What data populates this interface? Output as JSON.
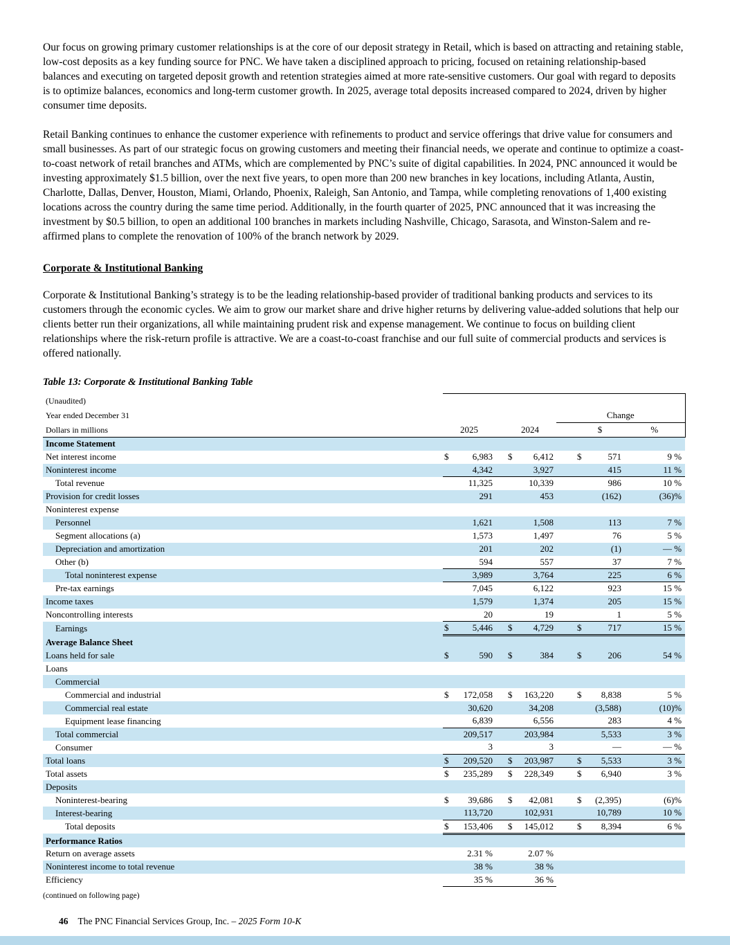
{
  "colors": {
    "row_shade": "#c8e4f2",
    "bottom_bar": "#b7d9eb"
  },
  "document": {
    "paragraphs": [
      "Our focus on growing primary customer relationships is at the core of our deposit strategy in Retail, which is based on attracting and retaining stable, low-cost deposits as a key funding source for PNC. We have taken a disciplined approach to pricing, focused on retaining relationship-based balances and executing on targeted deposit growth and retention strategies aimed at more rate-sensitive customers. Our goal with regard to deposits is to optimize balances, economics and long-term customer growth. In 2025, average total deposits increased compared to 2024, driven by higher consumer time deposits.",
      "Retail Banking continues to enhance the customer experience with refinements to product and service offerings that drive value for consumers and small businesses. As part of our strategic focus on growing customers and meeting their financial needs, we operate and continue to optimize a coast-to-coast network of retail branches and ATMs, which are complemented by PNC’s suite of digital capabilities. In 2024, PNC announced it would be investing approximately $1.5 billion, over the next five years, to open more than 200 new branches in key locations, including Atlanta, Austin, Charlotte, Dallas, Denver, Houston, Miami, Orlando, Phoenix, Raleigh, San Antonio, and Tampa, while completing renovations of 1,400 existing locations across the country during the same time period. Additionally, in the fourth quarter of 2025, PNC announced that it was increasing the investment by $0.5 billion, to open an additional 100 branches in markets including Nashville, Chicago, Sarasota, and Winston-Salem and re-affirmed plans to complete the renovation of 100% of the branch network by 2029.",
      "Corporate & Institutional Banking’s strategy is to be the leading relationship-based provider of traditional banking products and services to its customers through the economic cycles. We aim to grow our market share and drive higher returns by delivering value-added solutions that help our clients better run their organizations, all while maintaining prudent risk and expense management. We continue to focus on building client relationships where the risk-return profile is attractive. We are a coast-to-coast franchise and our full suite of commercial products and services is offered nationally."
    ],
    "heading": "Corporate & Institutional Banking",
    "table_title": "Table 13: Corporate & Institutional Banking Table",
    "continued_note": "(continued on following page)",
    "footer": {
      "page_number": "46",
      "company": "The PNC Financial Services Group, Inc. – ",
      "form": "2025 Form 10-K"
    }
  },
  "table": {
    "header": {
      "unaudited": "(Unaudited)",
      "year_ended": "Year ended December 31",
      "dollars": "Dollars in millions",
      "col_2025": "2025",
      "col_2024": "2024",
      "change": "Change",
      "change_dollar": "$",
      "change_pct": "%"
    },
    "rows": [
      {
        "section": true,
        "shaded": true,
        "label": "Income Statement"
      },
      {
        "label": "Net interest income",
        "ind": 0,
        "d1": "$",
        "v1": "6,983",
        "d2": "$",
        "v2": "6,412",
        "d3": "$",
        "v3": "571",
        "pct": "9 %"
      },
      {
        "label": "Noninterest income",
        "ind": 0,
        "shaded": true,
        "v1": "4,342",
        "v2": "3,927",
        "v3": "415",
        "pct": "11 %"
      },
      {
        "label": "Total revenue",
        "ind": 1,
        "ruleTop": true,
        "v1": "11,325",
        "v2": "10,339",
        "v3": "986",
        "pct": "10 %"
      },
      {
        "label": "Provision for credit losses",
        "ind": 0,
        "shaded": true,
        "v1": "291",
        "v2": "453",
        "v3": "(162)",
        "pct": "(36)%"
      },
      {
        "label": "Noninterest expense",
        "ind": 0
      },
      {
        "label": "Personnel",
        "ind": 1,
        "shaded": true,
        "v1": "1,621",
        "v2": "1,508",
        "v3": "113",
        "pct": "7 %"
      },
      {
        "label": "Segment allocations (a)",
        "ind": 1,
        "v1": "1,573",
        "v2": "1,497",
        "v3": "76",
        "pct": "5 %"
      },
      {
        "label": "Depreciation and amortization",
        "ind": 1,
        "shaded": true,
        "v1": "201",
        "v2": "202",
        "v3": "(1)",
        "pct": "— %"
      },
      {
        "label": "Other (b)",
        "ind": 1,
        "v1": "594",
        "v2": "557",
        "v3": "37",
        "pct": "7 %"
      },
      {
        "label": "Total noninterest expense",
        "ind": 2,
        "shaded": true,
        "ruleTop": true,
        "v1": "3,989",
        "v2": "3,764",
        "v3": "225",
        "pct": "6 %"
      },
      {
        "label": "Pre-tax earnings",
        "ind": 1,
        "ruleTop": true,
        "v1": "7,045",
        "v2": "6,122",
        "v3": "923",
        "pct": "15 %"
      },
      {
        "label": "Income taxes",
        "ind": 0,
        "shaded": true,
        "v1": "1,579",
        "v2": "1,374",
        "v3": "205",
        "pct": "15 %"
      },
      {
        "label": "Noncontrolling interests",
        "ind": 0,
        "v1": "20",
        "v2": "19",
        "v3": "1",
        "pct": "5 %"
      },
      {
        "label": "Earnings",
        "ind": 1,
        "shaded": true,
        "ruleTop": true,
        "dbl": true,
        "d1": "$",
        "v1": "5,446",
        "d2": "$",
        "v2": "4,729",
        "d3": "$",
        "v3": "717",
        "pct": "15 %"
      },
      {
        "section": true,
        "shaded": true,
        "label": "Average Balance Sheet"
      },
      {
        "label": "Loans held for sale",
        "ind": 0,
        "shaded": true,
        "d1": "$",
        "v1": "590",
        "d2": "$",
        "v2": "384",
        "d3": "$",
        "v3": "206",
        "pct": "54 %"
      },
      {
        "label": "Loans",
        "ind": 0
      },
      {
        "label": "Commercial",
        "ind": 1,
        "shaded": true
      },
      {
        "label": "Commercial and industrial",
        "ind": 2,
        "d1": "$",
        "v1": "172,058",
        "d2": "$",
        "v2": "163,220",
        "d3": "$",
        "v3": "8,838",
        "pct": "5 %"
      },
      {
        "label": "Commercial real estate",
        "ind": 2,
        "shaded": true,
        "v1": "30,620",
        "v2": "34,208",
        "v3": "(3,588)",
        "pct": "(10)%"
      },
      {
        "label": "Equipment lease financing",
        "ind": 2,
        "v1": "6,839",
        "v2": "6,556",
        "v3": "283",
        "pct": "4 %"
      },
      {
        "label": "Total commercial",
        "ind": 1,
        "shaded": true,
        "ruleTop": true,
        "v1": "209,517",
        "v2": "203,984",
        "v3": "5,533",
        "pct": "3 %"
      },
      {
        "label": "Consumer",
        "ind": 1,
        "v1": "3",
        "v2": "3",
        "v3": "—",
        "pct": "— %"
      },
      {
        "label": "Total loans",
        "ind": 0,
        "shaded": true,
        "ruleTop": true,
        "d1": "$",
        "v1": "209,520",
        "d2": "$",
        "v2": "203,987",
        "d3": "$",
        "v3": "5,533",
        "pct": "3 %"
      },
      {
        "label": "Total assets",
        "ind": 0,
        "ruleTop": true,
        "d1": "$",
        "v1": "235,289",
        "d2": "$",
        "v2": "228,349",
        "d3": "$",
        "v3": "6,940",
        "pct": "3 %"
      },
      {
        "label": "Deposits",
        "ind": 0,
        "shaded": true
      },
      {
        "label": "Noninterest-bearing",
        "ind": 1,
        "d1": "$",
        "v1": "39,686",
        "d2": "$",
        "v2": "42,081",
        "d3": "$",
        "v3": "(2,395)",
        "pct": "(6)%"
      },
      {
        "label": "Interest-bearing",
        "ind": 1,
        "shaded": true,
        "v1": "113,720",
        "v2": "102,931",
        "v3": "10,789",
        "pct": "10 %"
      },
      {
        "label": "Total deposits",
        "ind": 2,
        "ruleTop": true,
        "dbl": true,
        "d1": "$",
        "v1": "153,406",
        "d2": "$",
        "v2": "145,012",
        "d3": "$",
        "v3": "8,394",
        "pct": "6 %"
      },
      {
        "section": true,
        "shaded": true,
        "label": "Performance Ratios"
      },
      {
        "label": "Return on average assets",
        "ind": 0,
        "v1": "2.31 %",
        "v2": "2.07 %"
      },
      {
        "label": "Noninterest income to total revenue",
        "ind": 0,
        "shaded": true,
        "v1": "38 %",
        "v2": "38 %"
      },
      {
        "label": "Efficiency",
        "ind": 0,
        "lastRule": true,
        "v1": "35 %",
        "v2": "36 %"
      }
    ]
  }
}
